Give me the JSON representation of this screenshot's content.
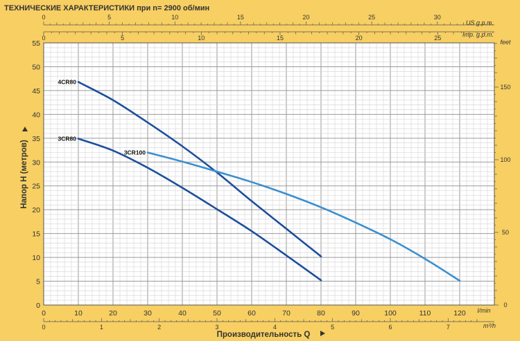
{
  "chart_data": {
    "type": "line",
    "title": "ТЕХНИЧЕСКИЕ ХАРАКТЕРИСТИКИ при n= 2900 об/мин",
    "xlabel": "Производительность Q",
    "ylabel": "Напор H  (метров)",
    "x_unit": "l/min",
    "x_range": [
      0,
      130
    ],
    "y_range": [
      0,
      55
    ],
    "x_ticks": [
      0,
      10,
      20,
      30,
      40,
      50,
      60,
      70,
      80,
      90,
      100,
      110,
      120
    ],
    "y_ticks": [
      0,
      5,
      10,
      15,
      20,
      25,
      30,
      35,
      40,
      45,
      50,
      55
    ],
    "grid": true,
    "secondary_axes": {
      "top_us": {
        "unit": "US g.p.m.",
        "ticks": [
          0,
          5,
          10,
          15,
          20,
          25,
          30
        ]
      },
      "top_imp": {
        "unit": "Imp. g.p.m.",
        "ticks": [
          0,
          5,
          10,
          15,
          20,
          25
        ]
      },
      "bottom_m3h": {
        "unit": "m³/h",
        "ticks": [
          0,
          1,
          2,
          3,
          4,
          5,
          6,
          7
        ]
      },
      "right_feet": {
        "unit": "feet",
        "ticks": [
          0,
          50,
          100,
          150
        ]
      }
    },
    "series": [
      {
        "name": "4CR80",
        "color": "#1c4f9c",
        "x": [
          10,
          20,
          30,
          40,
          50,
          60,
          70,
          80
        ],
        "y": [
          46.8,
          43.0,
          38.3,
          33.3,
          27.8,
          21.8,
          16.0,
          10.2
        ]
      },
      {
        "name": "3CR80",
        "color": "#1c4f9c",
        "x": [
          10,
          20,
          30,
          40,
          50,
          60,
          70,
          80
        ],
        "y": [
          34.9,
          32.4,
          28.8,
          24.6,
          20.1,
          15.5,
          10.4,
          5.2
        ]
      },
      {
        "name": "3CR100",
        "color": "#3a8fd0",
        "x": [
          30,
          40,
          50,
          60,
          70,
          80,
          90,
          100,
          110,
          120
        ],
        "y": [
          32.0,
          30.1,
          28.0,
          25.8,
          23.3,
          20.5,
          17.3,
          13.8,
          9.7,
          5.1
        ]
      }
    ]
  }
}
